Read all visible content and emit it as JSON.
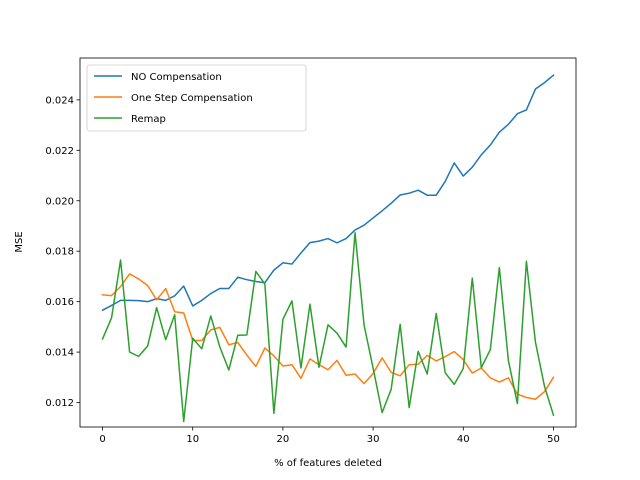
{
  "chart_data": {
    "type": "line",
    "title": "",
    "xlabel": "% of features deleted",
    "ylabel": "MSE",
    "xlim": [
      -2.5,
      52.5
    ],
    "ylim": [
      0.01103,
      0.02566
    ],
    "xticks": [
      0,
      10,
      20,
      30,
      40,
      50
    ],
    "yticks": [
      0.012,
      0.014,
      0.016,
      0.018,
      0.02,
      0.022,
      0.024
    ],
    "ytick_labels": [
      "0.012",
      "0.014",
      "0.016",
      "0.018",
      "0.020",
      "0.022",
      "0.024"
    ],
    "grid": false,
    "legend_position": "upper-left",
    "x": [
      0,
      1,
      2,
      3,
      4,
      5,
      6,
      7,
      8,
      9,
      10,
      11,
      12,
      13,
      14,
      15,
      16,
      17,
      18,
      19,
      20,
      21,
      22,
      23,
      24,
      25,
      26,
      27,
      28,
      29,
      30,
      31,
      32,
      33,
      34,
      35,
      36,
      37,
      38,
      39,
      40,
      41,
      42,
      43,
      44,
      45,
      46,
      47,
      48,
      49,
      50
    ],
    "series": [
      {
        "name": "NO Compensation",
        "color": "#1f77b4",
        "values": [
          0.01566,
          0.01585,
          0.01605,
          0.01605,
          0.01604,
          0.016,
          0.01612,
          0.01605,
          0.01623,
          0.01662,
          0.01583,
          0.01605,
          0.01632,
          0.01652,
          0.01652,
          0.01697,
          0.01687,
          0.0168,
          0.01675,
          0.01725,
          0.01754,
          0.01749,
          0.01793,
          0.01834,
          0.0184,
          0.0185,
          0.01833,
          0.0185,
          0.01884,
          0.01903,
          0.01932,
          0.0196,
          0.0199,
          0.02023,
          0.0203,
          0.02042,
          0.02022,
          0.02022,
          0.02077,
          0.0215,
          0.02098,
          0.02133,
          0.02182,
          0.02221,
          0.02272,
          0.02303,
          0.02345,
          0.0236,
          0.02443,
          0.02468,
          0.02498
        ]
      },
      {
        "name": "One Step Compensation",
        "color": "#ff7f0e",
        "values": [
          0.01627,
          0.01624,
          0.0166,
          0.0171,
          0.0169,
          0.01664,
          0.01607,
          0.01652,
          0.0156,
          0.01555,
          0.01446,
          0.01446,
          0.01488,
          0.01498,
          0.01429,
          0.01438,
          0.01388,
          0.01343,
          0.01416,
          0.01385,
          0.01345,
          0.0135,
          0.01296,
          0.01373,
          0.0135,
          0.0133,
          0.01367,
          0.01308,
          0.01313,
          0.01275,
          0.01315,
          0.01377,
          0.0132,
          0.01306,
          0.0135,
          0.01352,
          0.01387,
          0.01365,
          0.01382,
          0.01402,
          0.0137,
          0.01317,
          0.01337,
          0.01298,
          0.01281,
          0.01298,
          0.01233,
          0.0122,
          0.01213,
          0.01243,
          0.013
        ]
      },
      {
        "name": "Remap",
        "color": "#2ca02c",
        "values": [
          0.01452,
          0.01536,
          0.01765,
          0.014,
          0.01383,
          0.01424,
          0.01576,
          0.01449,
          0.01548,
          0.01125,
          0.01455,
          0.01413,
          0.01543,
          0.01421,
          0.01329,
          0.01467,
          0.01468,
          0.0172,
          0.0167,
          0.01157,
          0.0153,
          0.01603,
          0.01337,
          0.0159,
          0.0134,
          0.01508,
          0.01475,
          0.0142,
          0.01873,
          0.01507,
          0.01337,
          0.0116,
          0.01252,
          0.0151,
          0.0118,
          0.01403,
          0.01313,
          0.01553,
          0.01318,
          0.01272,
          0.01335,
          0.01693,
          0.01338,
          0.0141,
          0.01735,
          0.01367,
          0.01196,
          0.0176,
          0.0144,
          0.01265,
          0.0115
        ]
      }
    ]
  }
}
